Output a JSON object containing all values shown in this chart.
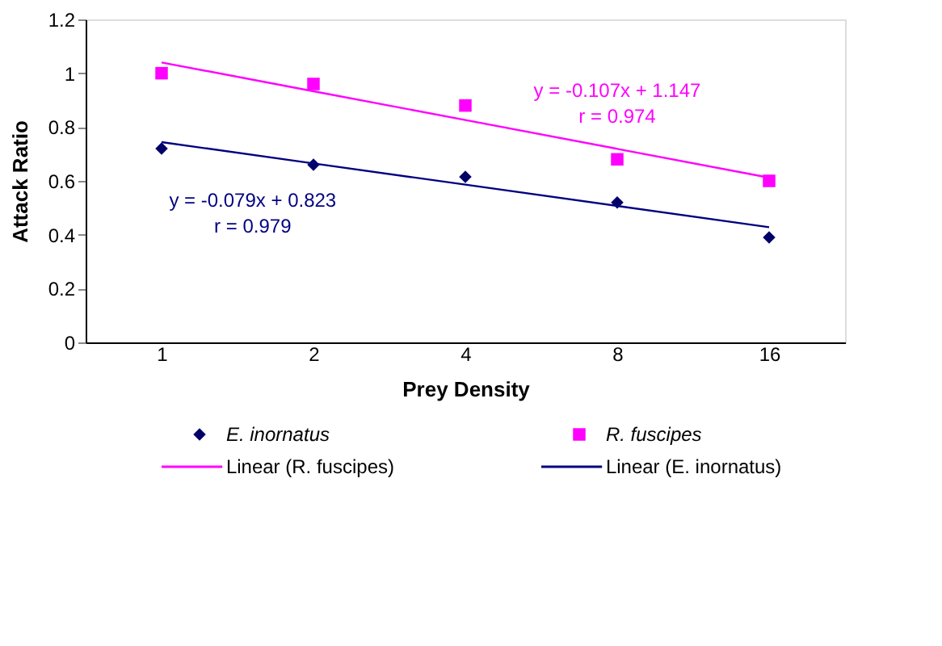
{
  "chart_data": {
    "type": "scatter",
    "xlabel": "Prey Density",
    "ylabel": "Attack Ratio",
    "categories": [
      "1",
      "2",
      "4",
      "8",
      "16"
    ],
    "ylim": [
      0,
      1.2
    ],
    "yticks": [
      0,
      0.2,
      0.4,
      0.6,
      0.8,
      1,
      1.2
    ],
    "grid": false,
    "legend": "bottom",
    "series": [
      {
        "name": "E. inornatus",
        "marker": "diamond",
        "color": "#000066",
        "values": [
          0.72,
          0.66,
          0.615,
          0.52,
          0.39
        ]
      },
      {
        "name": "R. fuscipes",
        "marker": "square",
        "color": "#ff00ff",
        "values": [
          1.0,
          0.96,
          0.88,
          0.68,
          0.6
        ]
      },
      {
        "name": "Linear (R. fuscipes)",
        "type": "line",
        "color": "#ff00ff",
        "values": [
          1.04,
          0.933,
          0.826,
          0.719,
          0.612
        ]
      },
      {
        "name": "Linear (E. inornatus)",
        "type": "line",
        "color": "#000080",
        "values": [
          0.744,
          0.665,
          0.586,
          0.507,
          0.428
        ]
      }
    ],
    "annotations": [
      "y = -0.107x + 1.147",
      "r = 0.974",
      "y = -0.079x + 0.823",
      "r = 0.979"
    ]
  }
}
